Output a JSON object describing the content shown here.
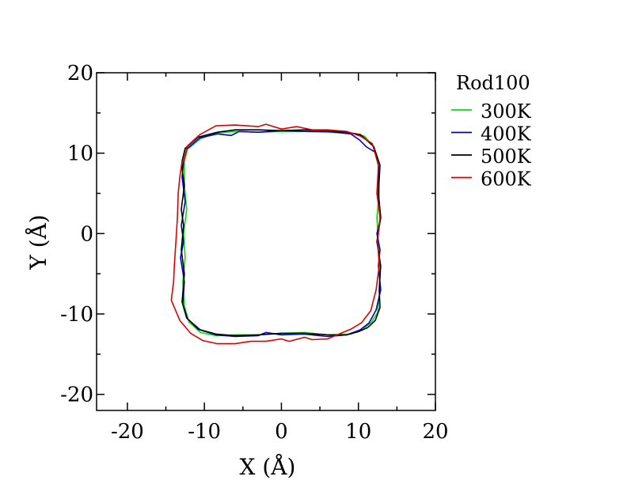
{
  "chart_data": {
    "type": "line",
    "title": "",
    "xlabel": "X (Å)",
    "ylabel": "Y (Å)",
    "xlim": [
      -24,
      20
    ],
    "ylim": [
      -22,
      20
    ],
    "xticks": [
      -20,
      -10,
      0,
      10,
      20
    ],
    "yticks": [
      -20,
      -10,
      0,
      10,
      20
    ],
    "xtick_labels": [
      "-20",
      "-10",
      "0",
      "10",
      "20"
    ],
    "ytick_labels": [
      "-20",
      "-10",
      "0",
      "10",
      "20"
    ],
    "grid": false,
    "legend": {
      "title": "Rod100",
      "placement": "outside-right-top"
    },
    "series": [
      {
        "name": "300K",
        "color": "#00e000",
        "x": [
          -12.6,
          -12.2,
          -10.5,
          -8.5,
          -6,
          -3,
          0,
          3,
          6,
          9,
          10.8,
          12,
          12.6,
          12.7,
          12.4,
          12.6,
          12.7,
          12.8,
          12.5,
          11.7,
          10.5,
          9,
          6,
          3,
          0,
          -3,
          -6,
          -8.5,
          -10.5,
          -12,
          -12.6,
          -12.8,
          -12.5,
          -12.7,
          -12.3,
          -12.6
        ],
        "y": [
          9,
          10.5,
          11.8,
          12.5,
          12.7,
          12.6,
          12.7,
          12.7,
          12.6,
          12.5,
          12.1,
          10.8,
          8.5,
          5,
          2,
          -1,
          -4,
          -7,
          -9.8,
          -11,
          -12,
          -12.5,
          -12.6,
          -12.3,
          -12.4,
          -12.6,
          -12.6,
          -12.7,
          -12.3,
          -11,
          -9,
          -6,
          -3,
          0,
          3,
          6
        ]
      },
      {
        "name": "400K",
        "color": "#0000c8",
        "x": [
          -12.7,
          -12.3,
          -10.6,
          -8.3,
          -6.5,
          -5.5,
          -3,
          0,
          3,
          6,
          9,
          10.2,
          11,
          12.2,
          12.7,
          12.5,
          12.9,
          12.4,
          12.8,
          12.6,
          12.9,
          12.3,
          11.4,
          10.2,
          8.5,
          6,
          3,
          0,
          -2,
          -3,
          -6,
          -8.5,
          -10.5,
          -12.2,
          -12.8,
          -12.6,
          -13.1,
          -12.7,
          -13,
          -12.5,
          -12.9
        ],
        "y": [
          9,
          10.5,
          11.9,
          12.4,
          12.2,
          12.7,
          12.6,
          12.8,
          12.7,
          12.7,
          12.4,
          11.6,
          10.8,
          10.1,
          8,
          5,
          2,
          0,
          -2,
          -4,
          -7,
          -9.5,
          -11.1,
          -12,
          -12.6,
          -12.8,
          -12.5,
          -12.6,
          -12.3,
          -12.7,
          -12.8,
          -12.6,
          -12,
          -10.6,
          -8.8,
          -6,
          -3,
          -1,
          1,
          4,
          7
        ]
      },
      {
        "name": "500K",
        "color": "#000000",
        "x": [
          -12.9,
          -12.5,
          -10.8,
          -8.3,
          -6,
          -3,
          0,
          3,
          6,
          8.5,
          10.3,
          12,
          12.8,
          12.6,
          12.9,
          12.4,
          12.9,
          12.7,
          12.8,
          12.2,
          11.2,
          10,
          8.5,
          6,
          3,
          0,
          -3,
          -6,
          -8.5,
          -10.8,
          -12.3,
          -12.9,
          -12.6,
          -13,
          -12.7,
          -13,
          -12.6,
          -12.9
        ],
        "y": [
          9,
          10.6,
          12,
          12.6,
          12.9,
          12.9,
          12.8,
          12.9,
          12.8,
          12.6,
          12.3,
          10.8,
          8.5,
          5,
          2,
          -1,
          -4,
          -7,
          -9.2,
          -10.8,
          -11.7,
          -12.2,
          -12.6,
          -12.6,
          -12.4,
          -12.4,
          -12.6,
          -12.7,
          -12.5,
          -11.9,
          -10.5,
          -8.5,
          -5,
          -2,
          1,
          3,
          6,
          8
        ]
      },
      {
        "name": "600K",
        "color": "#e00000",
        "x": [
          -12.7,
          -12.2,
          -10.6,
          -8.5,
          -6,
          -3,
          -2,
          0,
          2,
          4,
          6,
          8.5,
          10.3,
          11.8,
          12.6,
          12.4,
          12.8,
          12.5,
          12.7,
          12.3,
          11.6,
          10.4,
          9,
          7,
          6,
          4,
          3,
          1,
          0,
          -2,
          -4,
          -6,
          -8.3,
          -10.2,
          -11.8,
          -13.2,
          -14.3,
          -14,
          -13.9,
          -13.7,
          -13.5,
          -13.4,
          -13.2,
          -12.9
        ],
        "y": [
          9,
          10.9,
          12.3,
          13.4,
          13.5,
          13.3,
          13.6,
          13,
          13.3,
          12.9,
          12.9,
          12.7,
          12.1,
          11.2,
          8.5,
          5,
          2,
          -1,
          -4,
          -7,
          -9.6,
          -11.1,
          -11.9,
          -12.7,
          -13.1,
          -13.2,
          -12.9,
          -13.4,
          -13.1,
          -13.4,
          -13.4,
          -13.7,
          -13.7,
          -13.3,
          -12.4,
          -10.8,
          -8.3,
          -6,
          -4,
          -1,
          2,
          5,
          7,
          9
        ]
      }
    ]
  }
}
